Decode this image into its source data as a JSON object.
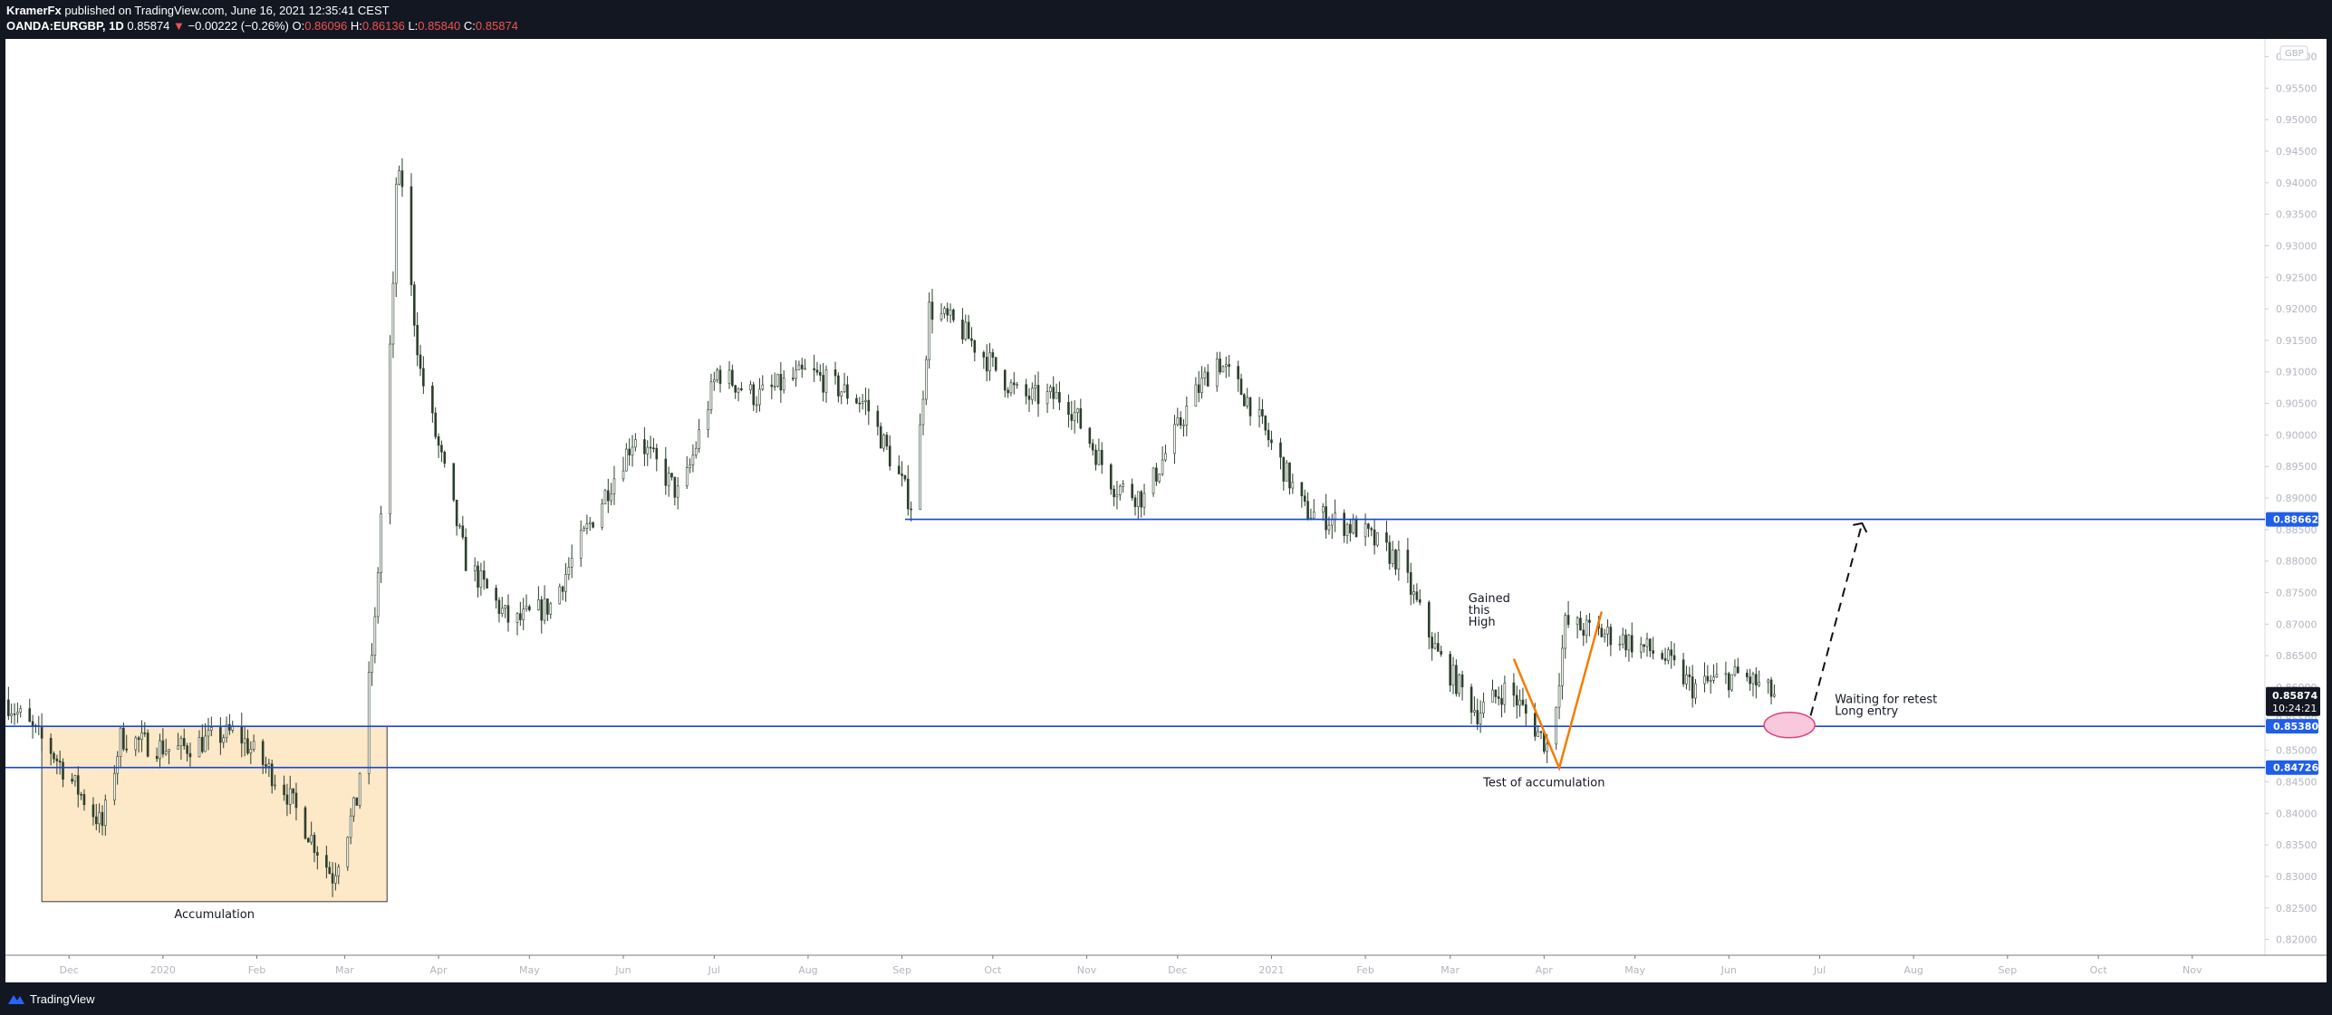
{
  "header": {
    "author": "KramerFx",
    "published_text": "published on TradingView.com, June 16, 2021 12:35:41 CEST",
    "symbol": "OANDA:EURGBP, 1D",
    "last": "0.85874",
    "change_arrow": "▼",
    "change": "−0.00222 (−0.26%)",
    "o_label": "O:",
    "o_value": "0.86096",
    "h_label": "H:",
    "h_value": "0.86136",
    "l_label": "L:",
    "l_value": "0.85840",
    "c_label": "C:",
    "c_value": "0.85874"
  },
  "footer": {
    "brand": "TradingView"
  },
  "chart_data": {
    "type": "candlestick",
    "symbol": "OANDA:EURGBP",
    "interval": "1D",
    "currency_label": "GBP",
    "ylim": [
      0.8175,
      0.9628
    ],
    "y_ticks": [
      "0.96000",
      "0.95500",
      "0.95000",
      "0.94500",
      "0.94000",
      "0.93500",
      "0.93000",
      "0.92500",
      "0.92000",
      "0.91500",
      "0.91000",
      "0.90500",
      "0.90000",
      "0.89500",
      "0.89000",
      "0.88500",
      "0.88000",
      "0.87500",
      "0.87000",
      "0.86500",
      "0.86000",
      "0.85500",
      "0.85000",
      "0.84500",
      "0.84000",
      "0.83500",
      "0.83000",
      "0.82500",
      "0.82000"
    ],
    "x_ticks": [
      "Dec",
      "2020",
      "Feb",
      "Mar",
      "Apr",
      "May",
      "Jun",
      "Jul",
      "Aug",
      "Sep",
      "Oct",
      "Nov",
      "Dec",
      "2021",
      "Feb",
      "Mar",
      "Apr",
      "May",
      "Jun",
      "Jul",
      "Aug",
      "Sep",
      "Oct",
      "Nov"
    ],
    "x_range": [
      "2019-11-10",
      "2021-11-25"
    ],
    "series": [
      {
        "values": [
          [
            "2019-11-10",
            0.858
          ],
          [
            "2019-11-25",
            0.85
          ],
          [
            "2019-12-12",
            0.838
          ],
          [
            "2019-12-18",
            0.852
          ],
          [
            "2020-01-05",
            0.85
          ],
          [
            "2020-01-25",
            0.853
          ],
          [
            "2020-02-10",
            0.844
          ],
          [
            "2020-02-26",
            0.83
          ],
          [
            "2020-03-05",
            0.842
          ],
          [
            "2020-03-11",
            0.87
          ],
          [
            "2020-03-19",
            0.94
          ],
          [
            "2020-03-26",
            0.91
          ],
          [
            "2020-04-10",
            0.88
          ],
          [
            "2020-04-25",
            0.87
          ],
          [
            "2020-05-08",
            0.873
          ],
          [
            "2020-05-20",
            0.885
          ],
          [
            "2020-06-05",
            0.9
          ],
          [
            "2020-06-20",
            0.89
          ],
          [
            "2020-07-02",
            0.91
          ],
          [
            "2020-07-15",
            0.906
          ],
          [
            "2020-08-01",
            0.91
          ],
          [
            "2020-08-20",
            0.905
          ],
          [
            "2020-09-05",
            0.888
          ],
          [
            "2020-09-10",
            0.92
          ],
          [
            "2020-09-20",
            0.917
          ],
          [
            "2020-10-10",
            0.906
          ],
          [
            "2020-10-25",
            0.906
          ],
          [
            "2020-11-10",
            0.892
          ],
          [
            "2020-11-20",
            0.89
          ],
          [
            "2020-12-05",
            0.905
          ],
          [
            "2020-12-14",
            0.912
          ],
          [
            "2020-12-25",
            0.905
          ],
          [
            "2021-01-12",
            0.888
          ],
          [
            "2021-01-30",
            0.885
          ],
          [
            "2021-02-12",
            0.88
          ],
          [
            "2021-02-25",
            0.865
          ],
          [
            "2021-03-10",
            0.856
          ],
          [
            "2021-03-20",
            0.86
          ],
          [
            "2021-04-03",
            0.85
          ],
          [
            "2021-04-08",
            0.87
          ],
          [
            "2021-04-25",
            0.868
          ],
          [
            "2021-05-10",
            0.865
          ],
          [
            "2021-05-20",
            0.86
          ],
          [
            "2021-06-05",
            0.862
          ],
          [
            "2021-06-16",
            0.8587
          ]
        ]
      }
    ],
    "levels": [
      {
        "value": "0.88662",
        "start": "2020-09-02"
      },
      {
        "value": "0.85380",
        "start": "2019-11-07"
      },
      {
        "value": "0.84726",
        "start": "2019-11-07"
      }
    ],
    "last_price": {
      "value": "0.85874",
      "countdown": "10:24:21"
    },
    "annotations": {
      "accumulation": "Accumulation",
      "gained_high": [
        "Gained",
        "this",
        "High"
      ],
      "test": "Test of accumulation",
      "waiting": [
        "Waiting for retest",
        "Long entry"
      ]
    },
    "colors": {
      "candle": "#2c3e2c",
      "level_line": "#1848d0",
      "label_bg": "#1f5ee8",
      "last_label_bg": "#131722",
      "accumulation_fill": "#fde8c8",
      "v_line": "#f57c00",
      "ellipse_fill": "#f8c8dc",
      "ellipse_stroke": "#e0407a"
    }
  }
}
